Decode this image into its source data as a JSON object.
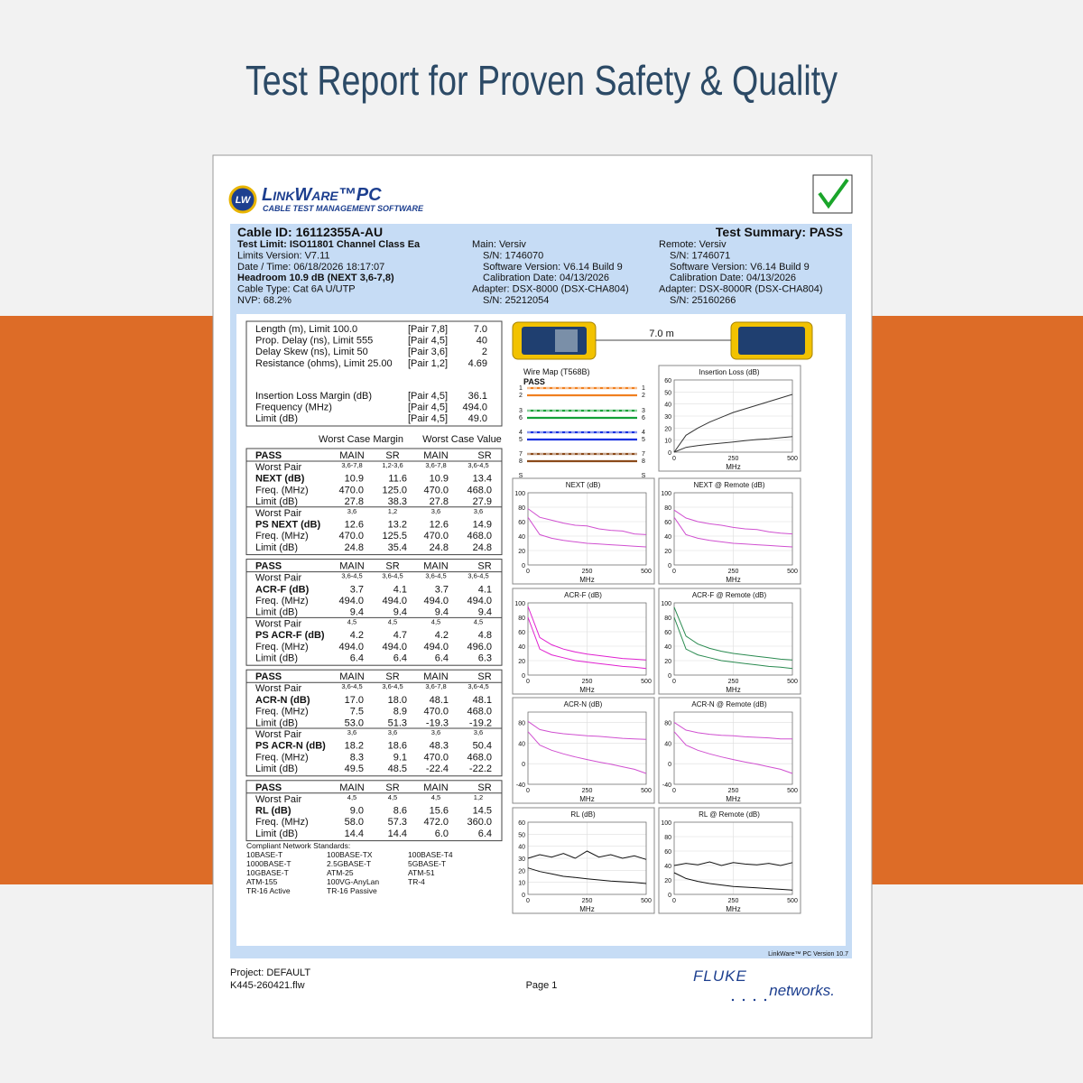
{
  "page_title": "Test Report for Proven Safety & Quality",
  "logo": {
    "badge": "LW",
    "name": "LinkWare™PC",
    "tagline": "CABLE TEST MANAGEMENT SOFTWARE"
  },
  "header": {
    "cable_id": "Cable ID: 16112355A-AU",
    "summary": "Test Summary: PASS",
    "test_limit": "Test Limit: ISO11801 Channel Class Ea",
    "limits_version": "Limits Version: V7.11",
    "date_time": "Date / Time: 06/18/2026  18:17:07",
    "headroom": "Headroom 10.9 dB (NEXT 3,6-7,8)",
    "cable_type": "Cable Type: Cat 6A U/UTP",
    "nvp": "NVP: 68.2%",
    "main": {
      "device": "Main: Versiv",
      "details": [
        "S/N: 1746070",
        "Software Version: V6.14 Build 9",
        "Calibration Date: 04/13/2026"
      ],
      "adapter": "Adapter: DSX-8000 (DSX-CHA804)",
      "adapter_details": [
        "S/N: 25212054"
      ]
    },
    "remote": {
      "device": "Remote: Versiv",
      "details": [
        "S/N: 1746071",
        "Software Version: V6.14 Build 9",
        "Calibration Date: 04/13/2026"
      ],
      "adapter": "Adapter: DSX-8000R (DSX-CHA804)",
      "adapter_details": [
        "S/N: 25160266"
      ]
    }
  },
  "summary": {
    "rows": [
      [
        "Length (m), Limit 100.0",
        "[Pair 7,8]",
        "7.0"
      ],
      [
        "Prop. Delay (ns), Limit 555",
        "[Pair 4,5]",
        "40"
      ],
      [
        "Delay Skew (ns), Limit 50",
        "[Pair 3,6]",
        "2"
      ],
      [
        "Resistance (ohms), Limit 25.00",
        "[Pair 1,2]",
        "4.69"
      ]
    ],
    "il_rows": [
      [
        "Insertion Loss Margin (dB)",
        "[Pair 4,5]",
        "36.1"
      ],
      [
        "Frequency (MHz)",
        "[Pair 4,5]",
        "494.0"
      ],
      [
        "Limit (dB)",
        "[Pair 4,5]",
        "49.0"
      ]
    ]
  },
  "column_groups": [
    "Worst Case Margin",
    "Worst Case Value"
  ],
  "tables": [
    {
      "header": [
        "PASS",
        "MAIN",
        "SR",
        "MAIN",
        "SR"
      ],
      "sections": [
        {
          "worst_pair": [
            "Worst Pair",
            "3,6-7,8",
            "1,2-3,6",
            "3,6-7,8",
            "3,6-4,5"
          ],
          "rows": [
            [
              "NEXT (dB)",
              "10.9",
              "11.6",
              "10.9",
              "13.4"
            ],
            [
              "Freq. (MHz)",
              "470.0",
              "125.0",
              "470.0",
              "468.0"
            ],
            [
              "Limit (dB)",
              "27.8",
              "38.3",
              "27.8",
              "27.9"
            ]
          ]
        },
        {
          "worst_pair": [
            "Worst Pair",
            "3,6",
            "1,2",
            "3,6",
            "3,6"
          ],
          "rows": [
            [
              "PS NEXT (dB)",
              "12.6",
              "13.2",
              "12.6",
              "14.9"
            ],
            [
              "Freq. (MHz)",
              "470.0",
              "125.5",
              "470.0",
              "468.0"
            ],
            [
              "Limit (dB)",
              "24.8",
              "35.4",
              "24.8",
              "24.8"
            ]
          ]
        }
      ]
    },
    {
      "header": [
        "PASS",
        "MAIN",
        "SR",
        "MAIN",
        "SR"
      ],
      "sections": [
        {
          "worst_pair": [
            "Worst Pair",
            "3,6-4,5",
            "3,6-4,5",
            "3,6-4,5",
            "3,6-4,5"
          ],
          "rows": [
            [
              "ACR-F (dB)",
              "3.7",
              "4.1",
              "3.7",
              "4.1"
            ],
            [
              "Freq. (MHz)",
              "494.0",
              "494.0",
              "494.0",
              "494.0"
            ],
            [
              "Limit (dB)",
              "9.4",
              "9.4",
              "9.4",
              "9.4"
            ]
          ]
        },
        {
          "worst_pair": [
            "Worst Pair",
            "4,5",
            "4,5",
            "4,5",
            "4,5"
          ],
          "rows": [
            [
              "PS ACR-F (dB)",
              "4.2",
              "4.7",
              "4.2",
              "4.8"
            ],
            [
              "Freq. (MHz)",
              "494.0",
              "494.0",
              "494.0",
              "496.0"
            ],
            [
              "Limit (dB)",
              "6.4",
              "6.4",
              "6.4",
              "6.3"
            ]
          ]
        }
      ]
    },
    {
      "header": [
        "PASS",
        "MAIN",
        "SR",
        "MAIN",
        "SR"
      ],
      "sections": [
        {
          "worst_pair": [
            "Worst Pair",
            "3,6-4,5",
            "3,6-4,5",
            "3,6-7,8",
            "3,6-4,5"
          ],
          "rows": [
            [
              "ACR-N (dB)",
              "17.0",
              "18.0",
              "48.1",
              "48.1"
            ],
            [
              "Freq. (MHz)",
              "7.5",
              "8.9",
              "470.0",
              "468.0"
            ],
            [
              "Limit (dB)",
              "53.0",
              "51.3",
              "-19.3",
              "-19.2"
            ]
          ]
        },
        {
          "worst_pair": [
            "Worst Pair",
            "3,6",
            "3,6",
            "3,6",
            "3,6"
          ],
          "rows": [
            [
              "PS ACR-N (dB)",
              "18.2",
              "18.6",
              "48.3",
              "50.4"
            ],
            [
              "Freq. (MHz)",
              "8.3",
              "9.1",
              "470.0",
              "468.0"
            ],
            [
              "Limit (dB)",
              "49.5",
              "48.5",
              "-22.4",
              "-22.2"
            ]
          ]
        }
      ]
    },
    {
      "header": [
        "PASS",
        "MAIN",
        "SR",
        "MAIN",
        "SR"
      ],
      "sections": [
        {
          "worst_pair": [
            "Worst Pair",
            "4,5",
            "4,5",
            "4,5",
            "1,2"
          ],
          "rows": [
            [
              "RL (dB)",
              "9.0",
              "8.6",
              "15.6",
              "14.5"
            ],
            [
              "Freq. (MHz)",
              "58.0",
              "57.3",
              "472.0",
              "360.0"
            ],
            [
              "Limit (dB)",
              "14.4",
              "14.4",
              "6.0",
              "6.4"
            ]
          ]
        }
      ]
    }
  ],
  "standards": {
    "title": "Compliant Network Standards:",
    "items": [
      "10BASE-T",
      "100BASE-TX",
      "100BASE-T4",
      "1000BASE-T",
      "2.5GBASE-T",
      "5GBASE-T",
      "10GBASE-T",
      "ATM-25",
      "ATM-51",
      "ATM-155",
      "100VG-AnyLan",
      "TR-4",
      "TR-16 Active",
      "TR-16 Passive"
    ]
  },
  "link_length": "7.0 m",
  "wire_map": {
    "title": "Wire Map (T568B)",
    "result": "PASS",
    "pins": [
      "1",
      "2",
      "3",
      "6",
      "4",
      "5",
      "7",
      "8"
    ],
    "shield": "S",
    "pair_colors": [
      "#f08020",
      "#13a038",
      "#1530e0",
      "#8b4a1a"
    ]
  },
  "plots": [
    {
      "title": "Insertion Loss (dB)",
      "xlabel": "MHz",
      "xlim": [
        0,
        500
      ],
      "ylim": [
        0,
        60
      ],
      "xticks": [
        0,
        250,
        500
      ],
      "yticks": [
        0,
        10,
        20,
        30,
        40,
        50,
        60
      ],
      "x": [
        0,
        50,
        100,
        150,
        200,
        250,
        300,
        350,
        400,
        450,
        500
      ],
      "series": [
        {
          "color": "#333333",
          "values": [
            0,
            14,
            20,
            25,
            29,
            33,
            36,
            39,
            42,
            45,
            48
          ]
        },
        {
          "color": "#333333",
          "values": [
            0,
            4,
            5.5,
            6.5,
            7.5,
            8.5,
            9.5,
            10.5,
            11,
            12,
            13
          ]
        }
      ]
    },
    {
      "title": "NEXT (dB)",
      "xlabel": "MHz",
      "xlim": [
        0,
        500
      ],
      "ylim": [
        0,
        100
      ],
      "xticks": [
        0,
        250,
        500
      ],
      "yticks": [
        0,
        20,
        40,
        60,
        80,
        100
      ],
      "x": [
        0,
        50,
        100,
        150,
        200,
        250,
        300,
        350,
        400,
        450,
        500
      ],
      "series": [
        {
          "color": "#d050d0",
          "values": [
            78,
            66,
            62,
            58,
            55,
            54,
            50,
            48,
            47,
            43,
            42
          ]
        },
        {
          "color": "#d050d0",
          "values": [
            66,
            42,
            37,
            34,
            32,
            30,
            29,
            28,
            27,
            26,
            25
          ]
        }
      ]
    },
    {
      "title": "NEXT @ Remote (dB)",
      "xlabel": "MHz",
      "xlim": [
        0,
        500
      ],
      "ylim": [
        0,
        100
      ],
      "xticks": [
        0,
        250,
        500
      ],
      "yticks": [
        0,
        20,
        40,
        60,
        80,
        100
      ],
      "x": [
        0,
        50,
        100,
        150,
        200,
        250,
        300,
        350,
        400,
        450,
        500
      ],
      "series": [
        {
          "color": "#d050d0",
          "values": [
            76,
            65,
            60,
            57,
            55,
            52,
            50,
            49,
            46,
            44,
            43
          ]
        },
        {
          "color": "#d050d0",
          "values": [
            66,
            42,
            37,
            34,
            32,
            30,
            29,
            28,
            27,
            26,
            25
          ]
        }
      ]
    },
    {
      "title": "ACR-F (dB)",
      "xlabel": "MHz",
      "xlim": [
        0,
        500
      ],
      "ylim": [
        0,
        100
      ],
      "xticks": [
        0,
        250,
        500
      ],
      "yticks": [
        0,
        20,
        40,
        60,
        80,
        100
      ],
      "x": [
        0,
        50,
        100,
        150,
        200,
        250,
        300,
        350,
        400,
        450,
        500
      ],
      "series": [
        {
          "color": "#e020d0",
          "values": [
            95,
            52,
            42,
            36,
            32,
            29,
            27,
            25,
            23,
            22,
            21
          ]
        },
        {
          "color": "#e020d0",
          "values": [
            80,
            36,
            28,
            24,
            20,
            18,
            16,
            14,
            12,
            11,
            9
          ]
        }
      ]
    },
    {
      "title": "ACR-F @ Remote (dB)",
      "xlabel": "MHz",
      "xlim": [
        0,
        500
      ],
      "ylim": [
        0,
        100
      ],
      "xticks": [
        0,
        250,
        500
      ],
      "yticks": [
        0,
        20,
        40,
        60,
        80,
        100
      ],
      "x": [
        0,
        50,
        100,
        150,
        200,
        250,
        300,
        350,
        400,
        450,
        500
      ],
      "series": [
        {
          "color": "#2a8a50",
          "values": [
            94,
            54,
            43,
            37,
            33,
            30,
            28,
            26,
            24,
            22,
            21
          ]
        },
        {
          "color": "#2a8a50",
          "values": [
            80,
            36,
            28,
            24,
            20,
            18,
            16,
            14,
            12,
            11,
            9
          ]
        }
      ]
    },
    {
      "title": "ACR-N (dB)",
      "xlabel": "MHz",
      "xlim": [
        0,
        500
      ],
      "ylim": [
        -40,
        100
      ],
      "xticks": [
        0,
        250,
        500
      ],
      "yticks": [
        -40,
        0,
        40,
        80
      ],
      "x": [
        0,
        50,
        100,
        150,
        200,
        250,
        300,
        350,
        400,
        450,
        500
      ],
      "series": [
        {
          "color": "#d050d0",
          "values": [
            82,
            66,
            61,
            58,
            56,
            54,
            53,
            51,
            49,
            48,
            47
          ]
        },
        {
          "color": "#d050d0",
          "values": [
            62,
            36,
            26,
            19,
            13,
            8,
            3,
            -1,
            -6,
            -11,
            -19
          ]
        }
      ]
    },
    {
      "title": "ACR-N @ Remote (dB)",
      "xlabel": "MHz",
      "xlim": [
        0,
        500
      ],
      "ylim": [
        -40,
        100
      ],
      "xticks": [
        0,
        250,
        500
      ],
      "yticks": [
        -40,
        0,
        40,
        80
      ],
      "x": [
        0,
        50,
        100,
        150,
        200,
        250,
        300,
        350,
        400,
        450,
        500
      ],
      "series": [
        {
          "color": "#d050d0",
          "values": [
            80,
            65,
            60,
            57,
            55,
            54,
            52,
            51,
            50,
            48,
            48
          ]
        },
        {
          "color": "#d050d0",
          "values": [
            62,
            36,
            26,
            19,
            13,
            8,
            3,
            -1,
            -6,
            -11,
            -19
          ]
        }
      ]
    },
    {
      "title": "RL (dB)",
      "xlabel": "MHz",
      "xlim": [
        0,
        500
      ],
      "ylim": [
        0,
        60
      ],
      "xticks": [
        0,
        250,
        500
      ],
      "yticks": [
        0,
        10,
        20,
        30,
        40,
        50,
        60
      ],
      "x": [
        0,
        50,
        100,
        150,
        200,
        250,
        300,
        350,
        400,
        450,
        500
      ],
      "series": [
        {
          "color": "#111111",
          "values": [
            30,
            33,
            31,
            34,
            30,
            36,
            31,
            33,
            30,
            32,
            29
          ]
        },
        {
          "color": "#111111",
          "values": [
            22,
            19,
            17,
            15,
            14,
            13,
            12,
            11,
            10.5,
            10,
            9
          ]
        }
      ]
    },
    {
      "title": "RL @ Remote (dB)",
      "xlabel": "MHz",
      "xlim": [
        0,
        500
      ],
      "ylim": [
        0,
        100
      ],
      "xticks": [
        0,
        250,
        500
      ],
      "yticks": [
        0,
        20,
        40,
        60,
        80,
        100
      ],
      "x": [
        0,
        50,
        100,
        150,
        200,
        250,
        300,
        350,
        400,
        450,
        500
      ],
      "series": [
        {
          "color": "#111111",
          "values": [
            40,
            43,
            41,
            45,
            40,
            44,
            42,
            41,
            43,
            40,
            44
          ]
        },
        {
          "color": "#111111",
          "values": [
            30,
            22,
            18,
            15,
            13,
            11,
            10,
            9,
            8,
            7,
            6
          ]
        }
      ]
    }
  ],
  "footer": {
    "version": "LinkWare™ PC Version 10.7",
    "project": "Project: DEFAULT",
    "file": "K445-260421.flw",
    "page": "Page 1",
    "brand": "FLUKE",
    "brand_sub": "networks."
  }
}
